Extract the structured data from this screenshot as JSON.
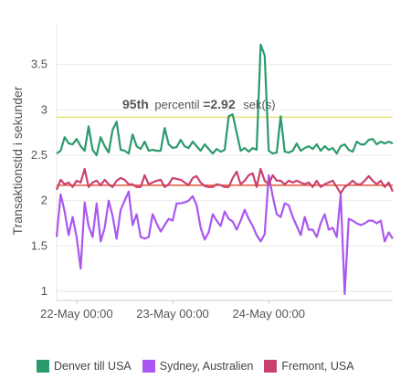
{
  "chart_data": {
    "type": "line",
    "ylabel": "Transaktionstid i sekunder",
    "ylim": [
      0.9,
      3.95
    ],
    "yticks": [
      "1",
      "1.5",
      "2",
      "2.5",
      "3",
      "3.5"
    ],
    "x_start": "2020-05-21T19:00",
    "x_step_hours": 1,
    "xticks": [
      "22-May 00:00",
      "23-May 00:00",
      "24-May 00:00"
    ],
    "grid": true,
    "legend_position": "bottom",
    "annotation": {
      "bold1": "95th",
      "text1": "percentil",
      "bold2": "=2.92",
      "text2": "sek(s)"
    },
    "reference_lines": [
      {
        "value": 2.92,
        "color": "#e8e07a"
      },
      {
        "value": 2.17,
        "color": "#e8563a"
      }
    ],
    "series": [
      {
        "name": "Denver till USA",
        "color": "#2b9a6c",
        "values": [
          2.52,
          2.55,
          2.7,
          2.63,
          2.62,
          2.68,
          2.6,
          2.55,
          2.82,
          2.56,
          2.5,
          2.7,
          2.6,
          2.53,
          2.78,
          2.87,
          2.56,
          2.55,
          2.52,
          2.73,
          2.6,
          2.57,
          2.65,
          2.55,
          2.56,
          2.55,
          2.55,
          2.8,
          2.62,
          2.58,
          2.59,
          2.67,
          2.6,
          2.58,
          2.65,
          2.6,
          2.55,
          2.62,
          2.57,
          2.52,
          2.57,
          2.54,
          2.56,
          2.93,
          2.95,
          2.75,
          2.55,
          2.58,
          2.54,
          2.58,
          2.56,
          3.72,
          3.6,
          2.55,
          2.52,
          2.53,
          2.93,
          2.54,
          2.53,
          2.55,
          2.63,
          2.55,
          2.58,
          2.6,
          2.57,
          2.62,
          2.55,
          2.6,
          2.56,
          2.58,
          2.52,
          2.6,
          2.62,
          2.56,
          2.54,
          2.65,
          2.62,
          2.62,
          2.67,
          2.68,
          2.62,
          2.65,
          2.63,
          2.65,
          2.63
        ]
      },
      {
        "name": "Sydney, Australien",
        "color": "#a957f0",
        "values": [
          1.6,
          2.07,
          1.88,
          1.62,
          1.82,
          1.6,
          1.25,
          1.98,
          1.72,
          1.6,
          1.97,
          1.55,
          1.7,
          2.0,
          1.83,
          1.58,
          1.9,
          2.0,
          2.1,
          1.73,
          1.85,
          1.6,
          1.58,
          1.6,
          1.85,
          1.75,
          1.66,
          1.73,
          1.8,
          1.78,
          1.97,
          1.97,
          1.98,
          2.0,
          2.05,
          1.95,
          1.7,
          1.57,
          1.65,
          1.85,
          1.78,
          1.72,
          1.88,
          1.8,
          1.77,
          1.68,
          1.78,
          1.9,
          1.8,
          1.72,
          1.62,
          1.55,
          1.63,
          2.28,
          2.05,
          1.85,
          1.82,
          1.97,
          1.95,
          1.82,
          1.72,
          1.62,
          1.82,
          1.68,
          1.68,
          1.6,
          1.75,
          1.85,
          1.68,
          1.7,
          1.6,
          2.07,
          0.97,
          1.8,
          1.78,
          1.75,
          1.73,
          1.75,
          1.78,
          1.78,
          1.75,
          1.78,
          1.55,
          1.65,
          1.58
        ]
      },
      {
        "name": "Fremont, USA",
        "color": "#c9426b",
        "values": [
          2.12,
          2.23,
          2.18,
          2.2,
          2.15,
          2.22,
          2.2,
          2.35,
          2.15,
          2.2,
          2.22,
          2.17,
          2.23,
          2.18,
          2.15,
          2.22,
          2.25,
          2.23,
          2.18,
          2.18,
          2.15,
          2.15,
          2.28,
          2.18,
          2.2,
          2.22,
          2.23,
          2.15,
          2.18,
          2.25,
          2.24,
          2.23,
          2.2,
          2.17,
          2.25,
          2.27,
          2.2,
          2.16,
          2.15,
          2.15,
          2.18,
          2.17,
          2.15,
          2.15,
          2.25,
          2.32,
          2.18,
          2.22,
          2.28,
          2.3,
          2.15,
          2.35,
          2.22,
          2.18,
          2.28,
          2.22,
          2.22,
          2.18,
          2.22,
          2.2,
          2.22,
          2.2,
          2.18,
          2.2,
          2.15,
          2.22,
          2.15,
          2.18,
          2.2,
          2.22,
          2.15,
          2.08,
          2.15,
          2.18,
          2.22,
          2.18,
          2.18,
          2.22,
          2.27,
          2.22,
          2.18,
          2.22,
          2.15,
          2.2,
          2.1
        ]
      }
    ]
  }
}
